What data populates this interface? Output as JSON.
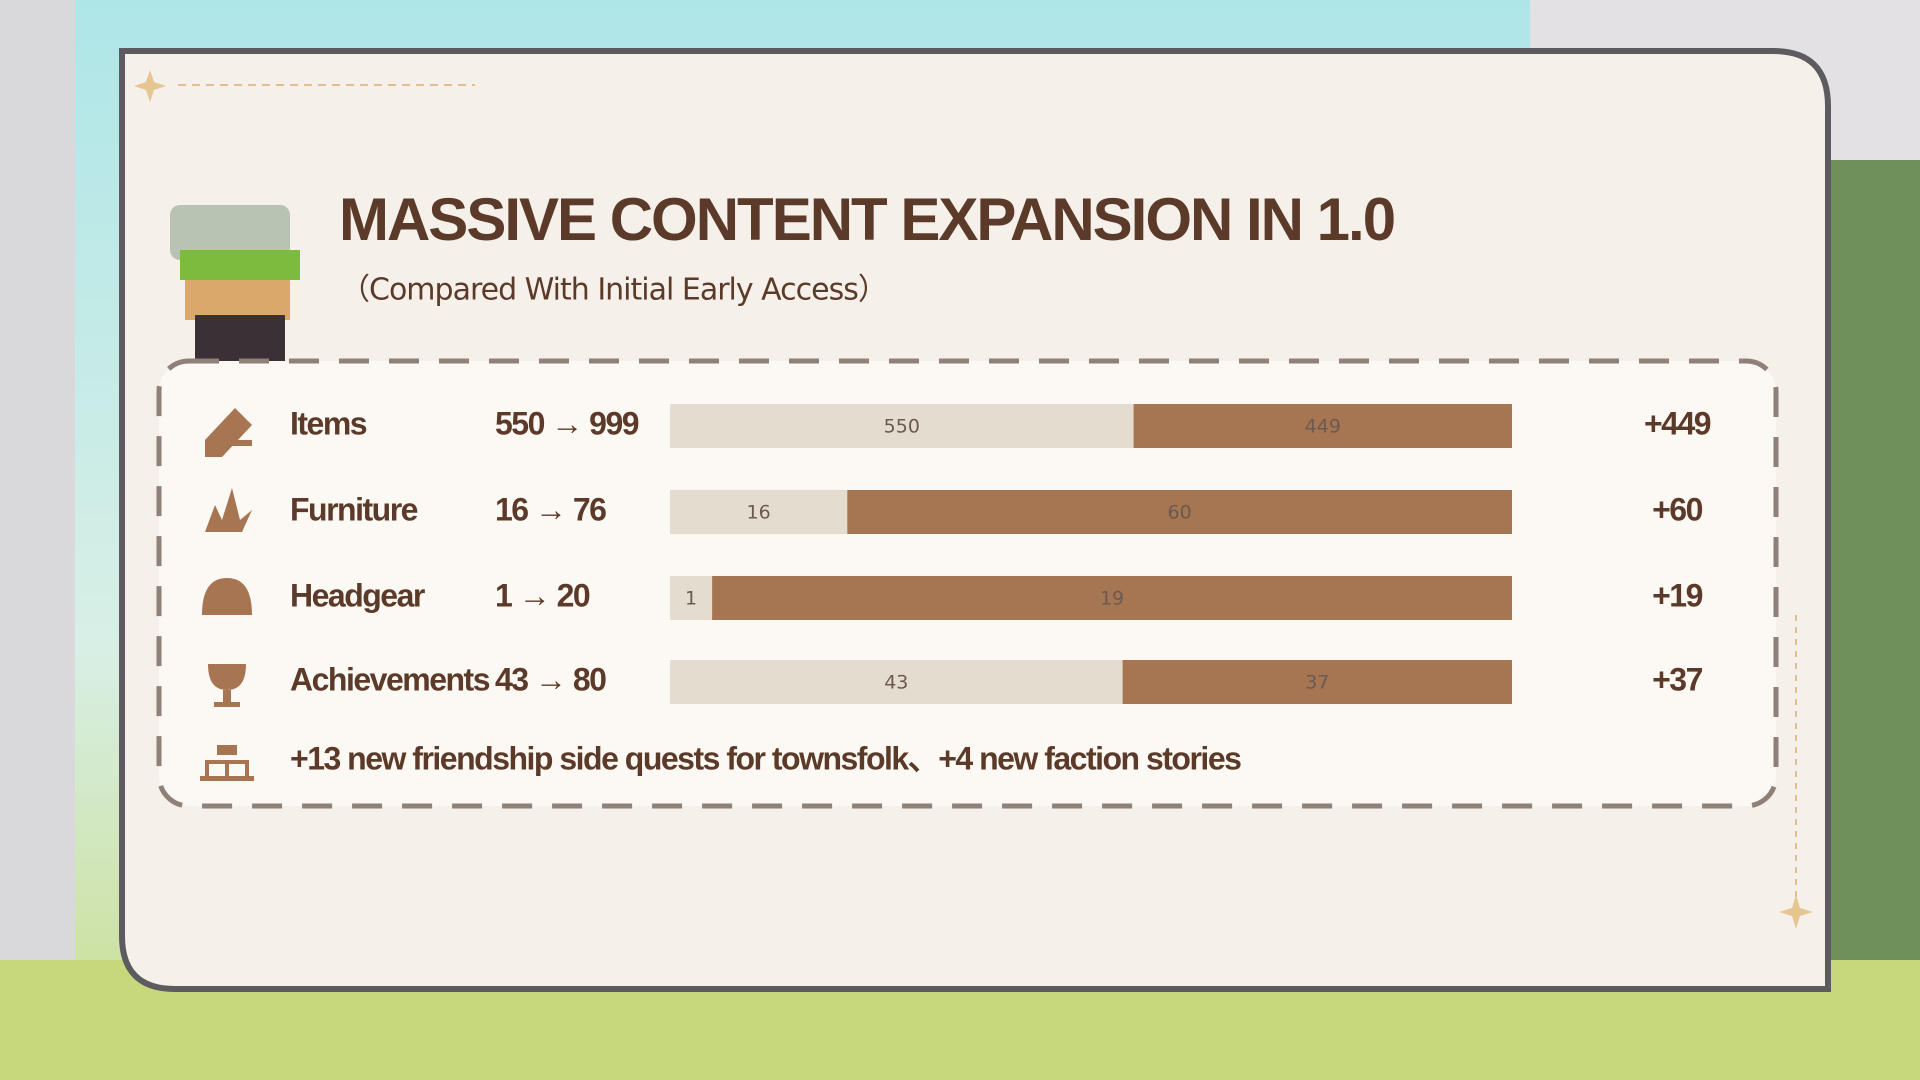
{
  "chart_data": {
    "type": "bar",
    "orientation": "horizontal",
    "stacked": true,
    "title": "MASSIVE CONTENT EXPANSION IN 1.0",
    "subtitle": "（Compared With Initial Early Access）",
    "categories": [
      "Items",
      "Furniture",
      "Headgear",
      "Achievements"
    ],
    "comparisons": [
      "550 → 999",
      "16 → 76",
      "1 → 20",
      "43 → 80"
    ],
    "change_labels": [
      "+449",
      "+60",
      "+19",
      "+37"
    ],
    "series": [
      {
        "color": "#e4dccf",
        "values": [
          550,
          16,
          1,
          43
        ]
      },
      {
        "color": "#a67552",
        "values": [
          449,
          60,
          19,
          37
        ]
      }
    ],
    "note": "+13 new friendship side quests for townsfolk、+4 new faction stories"
  }
}
